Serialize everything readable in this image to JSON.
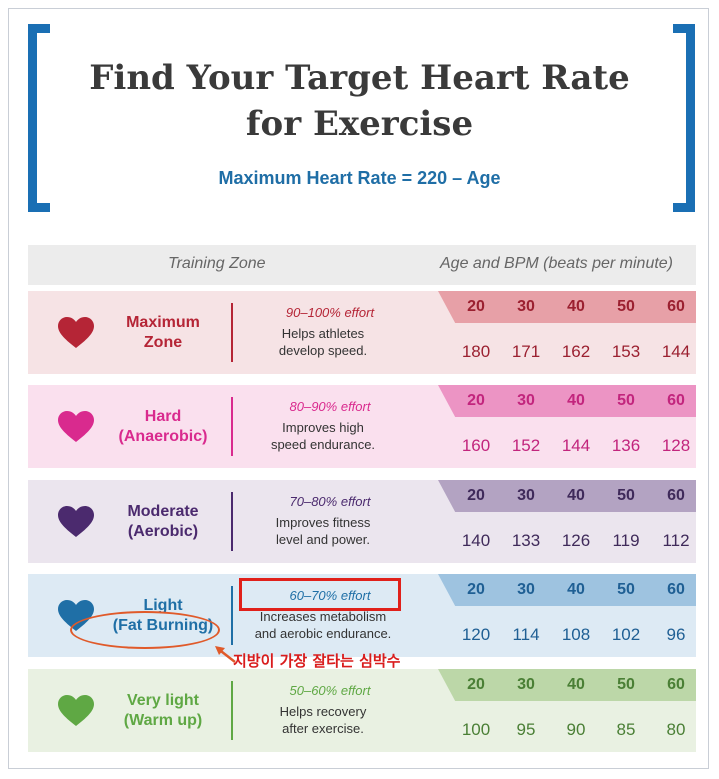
{
  "title": {
    "line1": "Find Your Target Heart Rate",
    "line2": "for Exercise"
  },
  "subtitle": "Maximum Heart Rate = 220 – Age",
  "header": {
    "zone_label": "Training Zone",
    "bpm_label": "Age and BPM (beats per minute)"
  },
  "ages": [
    "20",
    "30",
    "40",
    "50",
    "60"
  ],
  "zones": [
    {
      "line1": "Maximum",
      "line2": "Zone",
      "effort": "90–100% effort",
      "desc1": "Helps athletes",
      "desc2": "develop speed.",
      "bpm": [
        "180",
        "171",
        "162",
        "153",
        "144"
      ],
      "color": "#b52536",
      "light": "#f6e3e5",
      "age_bg": "#e7a0a7",
      "bpm_color": "#9b2030"
    },
    {
      "line1": "Hard",
      "line2": "(Anaerobic)",
      "effort": "80–90% effort",
      "desc1": "Improves high",
      "desc2": "speed endurance.",
      "bpm": [
        "160",
        "152",
        "144",
        "136",
        "128"
      ],
      "color": "#d92a8e",
      "light": "#fae0ee",
      "age_bg": "#ec94c4",
      "bpm_color": "#c2257d"
    },
    {
      "line1": "Moderate",
      "line2": "(Aerobic)",
      "effort": "70–80% effort",
      "desc1": "Improves fitness",
      "desc2": "level and power.",
      "bpm": [
        "140",
        "133",
        "126",
        "119",
        "112"
      ],
      "color": "#4b2a6e",
      "light": "#ebe5ee",
      "age_bg": "#b3a3c2",
      "bpm_color": "#3f2a5a"
    },
    {
      "line1": "Light",
      "line2": "(Fat Burning)",
      "effort": "60–70% effort",
      "desc1": "Increases metabolism",
      "desc2": "and aerobic endurance.",
      "bpm": [
        "120",
        "114",
        "108",
        "102",
        "96"
      ],
      "color": "#1f6fa6",
      "light": "#ddeaf4",
      "age_bg": "#9ec3e0",
      "bpm_color": "#1f5f94"
    },
    {
      "line1": "Very light",
      "line2": "(Warm up)",
      "effort": "50–60% effort",
      "desc1": "Helps recovery",
      "desc2": "after exercise.",
      "bpm": [
        "100",
        "95",
        "90",
        "85",
        "80"
      ],
      "color": "#5fa844",
      "light": "#e9f1e2",
      "age_bg": "#bcd7a8",
      "bpm_color": "#4a7f35"
    }
  ],
  "annotation": {
    "korean_text": "지방이 가장 잘타는 심박수"
  }
}
